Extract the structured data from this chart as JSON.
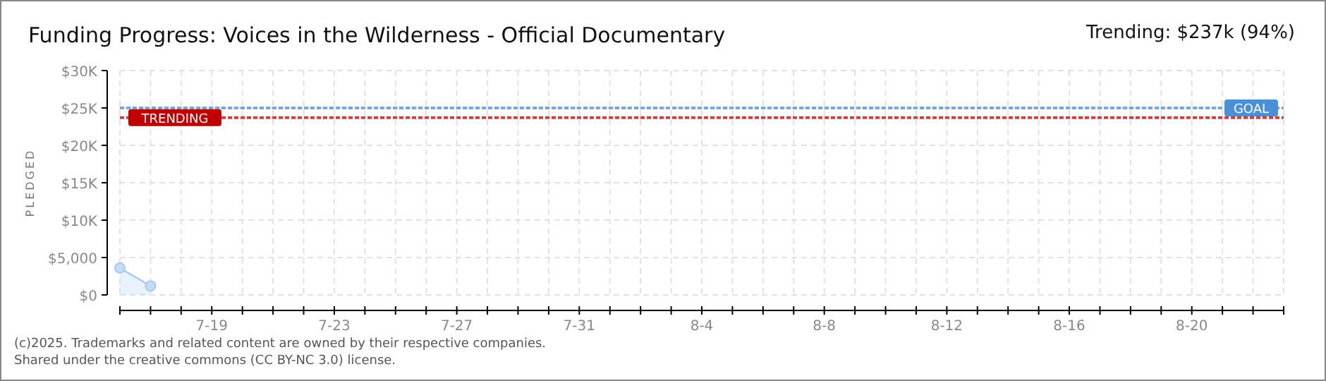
{
  "chart_data": {
    "type": "area",
    "title": "Funding Progress: Voices in the Wilderness - Official Documentary",
    "subtitle": "Trending: $237k (94%)",
    "ylabel": "PLEDGED",
    "x": [
      "2025-07-16",
      "2025-07-17"
    ],
    "series": [
      {
        "color": "#a9c9ef",
        "values": [
          3600,
          1200
        ]
      }
    ],
    "xlim": [
      "2025-07-16",
      "2025-08-23"
    ],
    "xticks": [
      {
        "value": "2025-07-16",
        "label": null
      },
      {
        "value": "2025-07-17",
        "label": null
      },
      {
        "value": "2025-07-18",
        "label": null
      },
      {
        "value": "2025-07-19",
        "label": "7-19"
      },
      {
        "value": "2025-07-20",
        "label": null
      },
      {
        "value": "2025-07-21",
        "label": null
      },
      {
        "value": "2025-07-22",
        "label": null
      },
      {
        "value": "2025-07-23",
        "label": "7-23"
      },
      {
        "value": "2025-07-24",
        "label": null
      },
      {
        "value": "2025-07-25",
        "label": null
      },
      {
        "value": "2025-07-26",
        "label": null
      },
      {
        "value": "2025-07-27",
        "label": "7-27"
      },
      {
        "value": "2025-07-28",
        "label": null
      },
      {
        "value": "2025-07-29",
        "label": null
      },
      {
        "value": "2025-07-30",
        "label": null
      },
      {
        "value": "2025-07-31",
        "label": "7-31"
      },
      {
        "value": "2025-08-01",
        "label": null
      },
      {
        "value": "2025-08-02",
        "label": null
      },
      {
        "value": "2025-08-03",
        "label": null
      },
      {
        "value": "2025-08-04",
        "label": "8-4"
      },
      {
        "value": "2025-08-05",
        "label": null
      },
      {
        "value": "2025-08-06",
        "label": null
      },
      {
        "value": "2025-08-07",
        "label": null
      },
      {
        "value": "2025-08-08",
        "label": "8-8"
      },
      {
        "value": "2025-08-09",
        "label": null
      },
      {
        "value": "2025-08-10",
        "label": null
      },
      {
        "value": "2025-08-11",
        "label": null
      },
      {
        "value": "2025-08-12",
        "label": "8-12"
      },
      {
        "value": "2025-08-13",
        "label": null
      },
      {
        "value": "2025-08-14",
        "label": null
      },
      {
        "value": "2025-08-15",
        "label": null
      },
      {
        "value": "2025-08-16",
        "label": "8-16"
      },
      {
        "value": "2025-08-17",
        "label": null
      },
      {
        "value": "2025-08-18",
        "label": null
      },
      {
        "value": "2025-08-19",
        "label": null
      },
      {
        "value": "2025-08-20",
        "label": "8-20"
      },
      {
        "value": "2025-08-21",
        "label": null
      },
      {
        "value": "2025-08-22",
        "label": null
      },
      {
        "value": "2025-08-23",
        "label": null
      }
    ],
    "ylim": [
      0,
      30000
    ],
    "yticks": [
      {
        "value": 0,
        "label": "$0"
      },
      {
        "value": 5000,
        "label": "$5,000"
      },
      {
        "value": 10000,
        "label": "$10K"
      },
      {
        "value": 15000,
        "label": "$15K"
      },
      {
        "value": 20000,
        "label": "$20K"
      },
      {
        "value": 25000,
        "label": "$25K"
      },
      {
        "value": 30000,
        "label": "$30K"
      }
    ],
    "ref_lines": [
      {
        "axis": "y",
        "value": 25000,
        "label": "GOAL",
        "color": "#4a90d9",
        "line_style": "dotted"
      },
      {
        "axis": "y",
        "value": 23700,
        "label": "TRENDING",
        "color": "#c00000",
        "line_style": "dotted"
      }
    ],
    "annotations": [
      "(c)2025. Trademarks and related content are owned by their respective companies.",
      "Shared under the creative commons (CC BY-NC 3.0) license."
    ],
    "grid": true,
    "marker": "circle"
  }
}
